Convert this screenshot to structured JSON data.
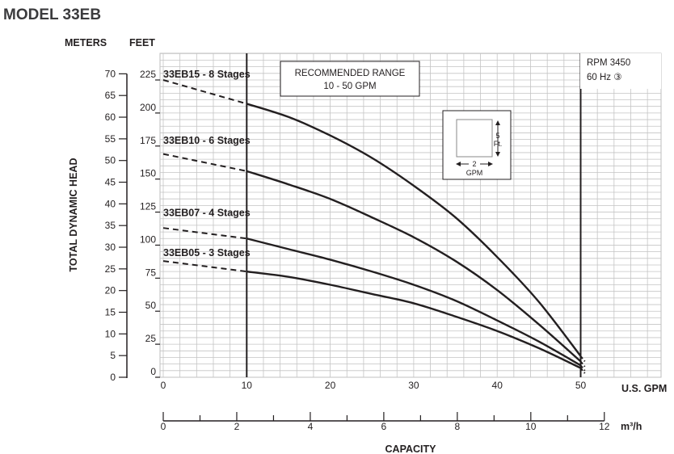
{
  "chart_data": {
    "type": "line",
    "title": "MODEL 33EB",
    "left_axis_label": "TOTAL DYNAMIC HEAD",
    "meters_header": "METERS",
    "feet_header": "FEET",
    "xlabel": "CAPACITY",
    "x_unit_gpm": "U.S. GPM",
    "x_unit_m3h": "m³/h",
    "xlim_gpm": [
      0,
      50
    ],
    "ylim_feet": [
      0,
      225
    ],
    "ylim_meters": [
      0,
      70
    ],
    "gpm_ticks": [
      0,
      10,
      20,
      30,
      40,
      50
    ],
    "m3h_ticks": [
      0,
      2,
      4,
      6,
      8,
      10,
      12
    ],
    "feet_ticks": [
      0,
      25,
      50,
      75,
      100,
      125,
      150,
      175,
      200,
      225
    ],
    "meter_ticks": [
      0,
      5,
      10,
      15,
      20,
      25,
      30,
      35,
      40,
      45,
      50,
      55,
      60,
      65,
      70
    ],
    "grid": true,
    "recommended_range": {
      "line1": "RECOMMENDED RANGE",
      "line2": "10 - 50 GPM",
      "from_gpm": 10,
      "to_gpm": 50
    },
    "rating": {
      "line1": "RPM 3450",
      "line2": "60 Hz  ③"
    },
    "grid_key": {
      "height": "5",
      "height_unit": "Ft.",
      "width": "2",
      "width_unit": "GPM"
    },
    "series": [
      {
        "name": "33EB15 - 8 Stages",
        "label_at_feet": 225,
        "dashed": [
          [
            0,
            225
          ],
          [
            10,
            207
          ]
        ],
        "solid": [
          [
            10,
            207
          ],
          [
            15,
            197
          ],
          [
            20,
            183
          ],
          [
            25,
            166
          ],
          [
            30,
            145
          ],
          [
            35,
            121
          ],
          [
            40,
            91
          ],
          [
            45,
            57
          ],
          [
            50,
            16
          ]
        ]
      },
      {
        "name": "33EB10 - 6 Stages",
        "label_at_feet": 175,
        "dashed": [
          [
            0,
            169
          ],
          [
            10,
            156
          ]
        ],
        "solid": [
          [
            10,
            156
          ],
          [
            15,
            146
          ],
          [
            20,
            135
          ],
          [
            25,
            121
          ],
          [
            30,
            106
          ],
          [
            35,
            88
          ],
          [
            40,
            66
          ],
          [
            45,
            40
          ],
          [
            50,
            12
          ]
        ]
      },
      {
        "name": "33EB07 - 4 Stages",
        "label_at_feet": 120,
        "dashed": [
          [
            0,
            113
          ],
          [
            10,
            105
          ]
        ],
        "solid": [
          [
            10,
            105
          ],
          [
            15,
            97
          ],
          [
            20,
            89
          ],
          [
            25,
            80
          ],
          [
            30,
            70
          ],
          [
            35,
            58
          ],
          [
            40,
            43
          ],
          [
            45,
            27
          ],
          [
            50,
            9
          ]
        ]
      },
      {
        "name": "33EB05 - 3 Stages",
        "label_at_feet": 90,
        "dashed": [
          [
            0,
            88
          ],
          [
            10,
            80
          ]
        ],
        "solid": [
          [
            10,
            80
          ],
          [
            15,
            76
          ],
          [
            20,
            70
          ],
          [
            25,
            63
          ],
          [
            30,
            56
          ],
          [
            35,
            46
          ],
          [
            40,
            35
          ],
          [
            45,
            22
          ],
          [
            50,
            7
          ]
        ]
      }
    ]
  }
}
